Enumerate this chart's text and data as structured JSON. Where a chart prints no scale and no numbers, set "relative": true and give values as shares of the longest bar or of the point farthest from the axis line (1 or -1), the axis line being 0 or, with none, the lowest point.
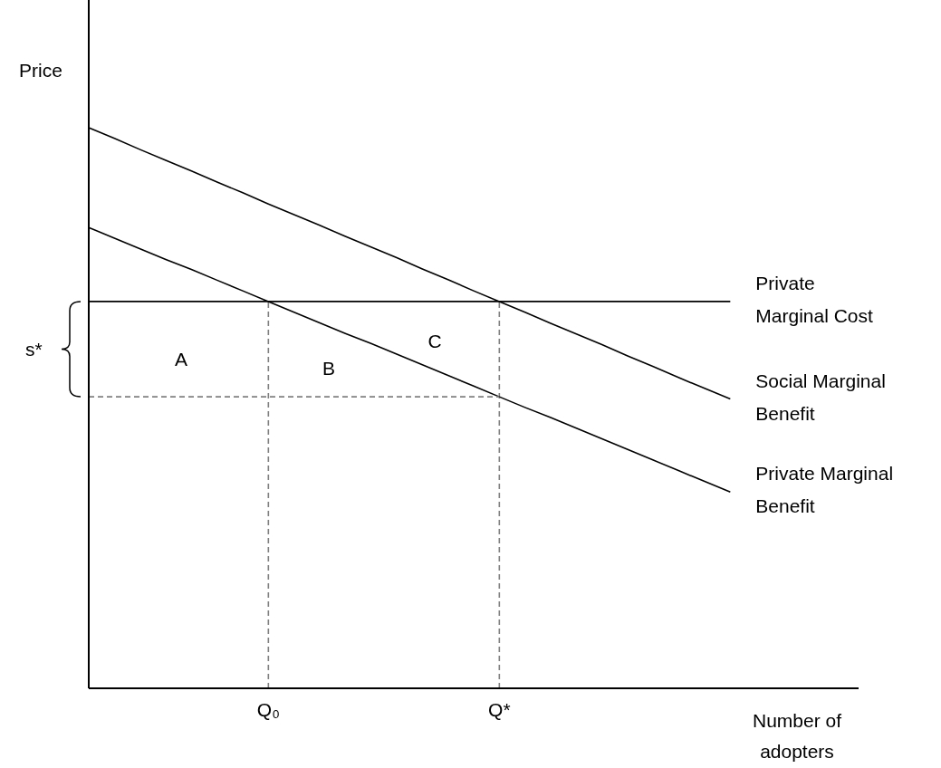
{
  "chart_data": {
    "type": "line",
    "relative": true,
    "xlabel": "Number of adopters",
    "ylabel": "Price",
    "categories": [
      null,
      null,
      null,
      null,
      null,
      null,
      null,
      "Q₀",
      null,
      null,
      null,
      null,
      null,
      null,
      null,
      null,
      "Q*",
      null,
      null,
      null,
      null,
      null,
      null,
      null,
      null,
      null,
      null,
      null,
      null,
      null,
      null
    ],
    "series": [
      {
        "name": "Private Marginal Cost",
        "color": "#000000",
        "values": [
          0.69,
          0.69,
          0.69,
          0.69,
          0.69,
          0.69,
          0.69,
          0.69,
          0.69,
          0.69,
          0.69,
          0.69,
          0.69,
          0.69,
          0.69,
          0.69,
          0.69,
          0.69,
          0.69,
          0.69,
          0.69,
          0.69,
          0.69,
          0.69,
          0.69,
          0.69,
          null,
          null,
          null,
          null,
          null
        ]
      },
      {
        "name": "Social Marginal Benefit",
        "color": "#000000",
        "values": [
          1,
          0.981,
          0.961,
          0.942,
          0.923,
          0.903,
          0.884,
          0.864,
          0.845,
          0.826,
          0.806,
          0.787,
          0.768,
          0.748,
          0.729,
          0.709,
          0.69,
          0.671,
          0.651,
          0.632,
          0.613,
          0.593,
          0.574,
          0.554,
          0.535,
          0.516,
          null,
          null,
          null,
          null,
          null
        ]
      },
      {
        "name": "Private Marginal Benefit",
        "color": "#000000",
        "values": [
          0.822,
          0.803,
          0.784,
          0.765,
          0.747,
          0.728,
          0.709,
          0.69,
          0.671,
          0.652,
          0.633,
          0.615,
          0.596,
          0.577,
          0.558,
          0.539,
          0.52,
          0.501,
          0.483,
          0.464,
          0.445,
          0.426,
          0.407,
          0.388,
          0.369,
          0.35,
          null,
          null,
          null,
          null,
          null
        ]
      },
      {
        "color": "#808080",
        "line_style": "dashed",
        "values": [
          0.52,
          0.52,
          0.52,
          0.52,
          0.52,
          0.52,
          0.52,
          0.52,
          0.52,
          0.52,
          0.52,
          0.52,
          0.52,
          0.52,
          0.52,
          0.52,
          0.52,
          null,
          null,
          null,
          null,
          null,
          null,
          null,
          null,
          null,
          null,
          null,
          null,
          null,
          null
        ]
      }
    ],
    "ref_lines": [
      {
        "axis": "x",
        "value": "Q₀",
        "color": "#808080",
        "line_style": "dashed"
      },
      {
        "axis": "x",
        "value": "Q*",
        "color": "#808080",
        "line_style": "dashed"
      }
    ],
    "annotations": [
      "A",
      "B",
      "C",
      "s*"
    ]
  }
}
